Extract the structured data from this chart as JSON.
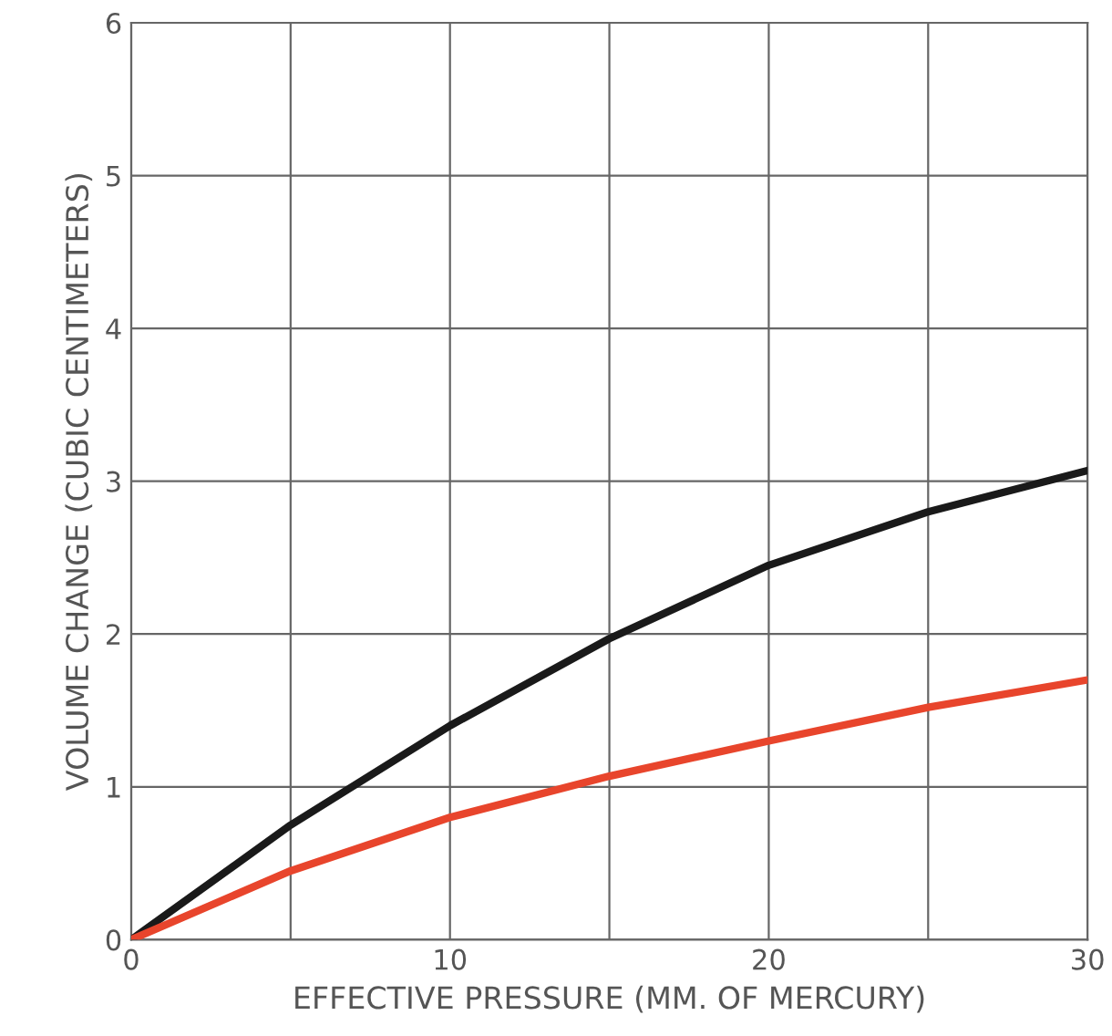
{
  "chart_data": {
    "type": "line",
    "xlabel": "EFFECTIVE PRESSURE (MM. OF MERCURY)",
    "ylabel": "VOLUME CHANGE (CUBIC CENTIMETERS)",
    "x": [
      0,
      5,
      10,
      15,
      20,
      25,
      30
    ],
    "series": [
      {
        "color": "#1a1a1a",
        "values": [
          0,
          0.75,
          1.4,
          1.97,
          2.45,
          2.8,
          3.07
        ]
      },
      {
        "color": "#e8452c",
        "values": [
          0,
          0.45,
          0.8,
          1.07,
          1.3,
          1.52,
          1.7
        ]
      }
    ],
    "xlim": [
      0,
      30
    ],
    "ylim": [
      0,
      6
    ],
    "xticks": [
      0,
      {
        "value": 5,
        "label": null
      },
      10,
      {
        "value": 15,
        "label": null
      },
      20,
      {
        "value": 25,
        "label": null
      },
      30
    ],
    "yticks": [
      0,
      1,
      2,
      3,
      4,
      5,
      6
    ],
    "grid": true,
    "marker": "none",
    "line_style": "solid",
    "legend": false
  }
}
